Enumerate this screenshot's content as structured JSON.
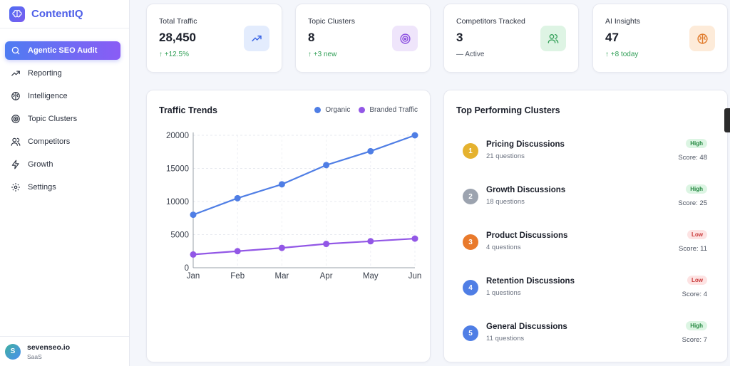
{
  "brand": {
    "name": "ContentIQ"
  },
  "sidebar": {
    "items": [
      {
        "label": "Agentic SEO Audit",
        "icon": "search-icon",
        "active": true
      },
      {
        "label": "Reporting",
        "icon": "trending-up-icon"
      },
      {
        "label": "Intelligence",
        "icon": "brain-icon"
      },
      {
        "label": "Topic Clusters",
        "icon": "target-icon"
      },
      {
        "label": "Competitors",
        "icon": "users-icon"
      },
      {
        "label": "Growth",
        "icon": "zap-icon"
      },
      {
        "label": "Settings",
        "icon": "gear-icon"
      }
    ]
  },
  "user": {
    "initial": "S",
    "name": "sevenseo.io",
    "plan": "SaaS"
  },
  "stats": [
    {
      "label": "Total Traffic",
      "value": "28,450",
      "change": "+12.5%",
      "icon": "trending-up-icon",
      "color": "#3b66e6",
      "bg": "#e3ecfd"
    },
    {
      "label": "Topic Clusters",
      "value": "8",
      "change": "+3 new",
      "icon": "target-icon",
      "color": "#8b4fe0",
      "bg": "#efe5fb"
    },
    {
      "label": "Competitors Tracked",
      "value": "3",
      "change": "Active",
      "icon": "users-icon",
      "color": "#2f9e55",
      "bg": "#def4e4"
    },
    {
      "label": "AI Insights",
      "value": "47",
      "change": "+8 today",
      "icon": "brain-icon",
      "color": "#e07a2a",
      "bg": "#fdebd9"
    }
  ],
  "trends": {
    "title": "Traffic Trends",
    "legend": [
      {
        "name": "Organic",
        "color": "#4f7ee5"
      },
      {
        "name": "Branded Traffic",
        "color": "#9257e6"
      }
    ]
  },
  "chart_data": {
    "type": "line",
    "categories": [
      "Jan",
      "Feb",
      "Mar",
      "Apr",
      "May",
      "Jun"
    ],
    "series": [
      {
        "name": "Organic",
        "values": [
          8000,
          10500,
          12600,
          15500,
          17600,
          20000
        ]
      },
      {
        "name": "Branded Traffic",
        "values": [
          2000,
          2500,
          3000,
          3600,
          4000,
          4400
        ]
      }
    ],
    "yticks": [
      0,
      5000,
      10000,
      15000,
      20000
    ],
    "ylim": [
      0,
      20000
    ],
    "grid": true,
    "legend": "top-right"
  },
  "clusters": {
    "title": "Top Performing Clusters",
    "items": [
      {
        "rank": "1",
        "name": "Pricing Discussions",
        "questions": "21 questions",
        "badge": "High",
        "score": "Score: 48",
        "color": "#e5b22f"
      },
      {
        "rank": "2",
        "name": "Growth Discussions",
        "questions": "18 questions",
        "badge": "High",
        "score": "Score: 25",
        "color": "#9ca3af"
      },
      {
        "rank": "3",
        "name": "Product Discussions",
        "questions": "4 questions",
        "badge": "Low",
        "score": "Score: 11",
        "color": "#e97a2c"
      },
      {
        "rank": "4",
        "name": "Retention Discussions",
        "questions": "1 questions",
        "badge": "Low",
        "score": "Score: 4",
        "color": "#4f7ee5"
      },
      {
        "rank": "5",
        "name": "General Discussions",
        "questions": "11 questions",
        "badge": "High",
        "score": "Score: 7",
        "color": "#4f7ee5"
      }
    ]
  }
}
